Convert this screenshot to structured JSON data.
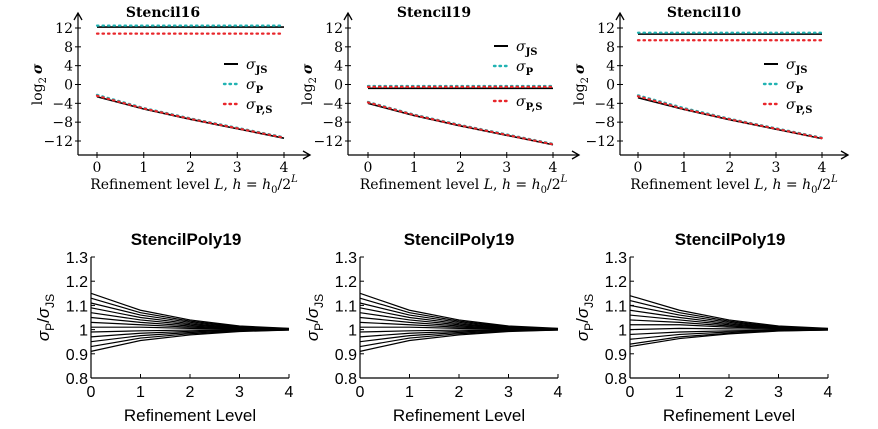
{
  "figure": {
    "top_xlabel_prefix": "Refinement level ",
    "top_xlabel_var": "L",
    "top_xlabel_mid": ", ",
    "top_xlabel_h": "h",
    "top_xlabel_eq": " = ",
    "top_xlabel_h0": "h",
    "top_xlabel_h0_sub": "0",
    "top_xlabel_frac": "/2",
    "top_xlabel_sup": "L",
    "top_ylabel_log": "log",
    "top_ylabel_sub": "2",
    "top_ylabel_sigma": "σ",
    "legend_sigma": "σ",
    "legend_js": "JS",
    "legend_p": "P",
    "legend_ps": "P,S",
    "bottom_xlabel": "Refinement Level",
    "bottom_ylabel_num": "σ",
    "bottom_ylabel_num_sub": "P",
    "bottom_ylabel_slash": "/",
    "bottom_ylabel_den": "σ",
    "bottom_ylabel_den_sub": "JS"
  },
  "colors": {
    "sigma_js": "#000000",
    "sigma_p": "#21b3b3",
    "sigma_p_s": "#e8262b",
    "ratio_lines": "#000000"
  },
  "chart_data": [
    {
      "type": "line",
      "title": "Stencil16",
      "x": [
        0,
        1,
        2,
        3,
        4
      ],
      "xticks": [
        "0",
        "1",
        "2",
        "3",
        "4"
      ],
      "yticks": [
        "12",
        "8",
        "4",
        "0",
        "−4",
        "−8",
        "−12"
      ],
      "ylim": [
        -13,
        13.5
      ],
      "legend_position": "right",
      "series": [
        {
          "name": "σJS",
          "style": "solid",
          "values": [
            12.2,
            12.2,
            12.2,
            12.2,
            12.2
          ]
        },
        {
          "name": "σP",
          "style": "dotted",
          "values": [
            12.5,
            12.5,
            12.5,
            12.5,
            12.5
          ]
        },
        {
          "name": "σP,S",
          "style": "dotted",
          "values": [
            10.8,
            10.8,
            10.8,
            10.8,
            10.8
          ]
        },
        {
          "name": "σJS",
          "style": "solid",
          "values": [
            -2.6,
            -5.2,
            -7.4,
            -9.4,
            -11.4
          ]
        },
        {
          "name": "σP",
          "style": "dotted",
          "values": [
            -2.2,
            -5.0,
            -7.2,
            -9.2,
            -11.2
          ]
        },
        {
          "name": "σP,S",
          "style": "dotted",
          "values": [
            -2.4,
            -5.1,
            -7.3,
            -9.3,
            -11.3
          ]
        }
      ]
    },
    {
      "type": "line",
      "title": "Stencil19",
      "x": [
        0,
        1,
        2,
        3,
        4
      ],
      "xticks": [
        "0",
        "1",
        "2",
        "3",
        "4"
      ],
      "yticks": [
        "12",
        "8",
        "4",
        "0",
        "−4",
        "−8",
        "−12"
      ],
      "ylim": [
        -13,
        13.5
      ],
      "legend_position": "right",
      "series": [
        {
          "name": "σJS",
          "style": "solid",
          "values": [
            -0.8,
            -0.8,
            -0.8,
            -0.8,
            -0.8
          ]
        },
        {
          "name": "σP",
          "style": "dotted",
          "values": [
            -0.3,
            -0.3,
            -0.3,
            -0.3,
            -0.3
          ]
        },
        {
          "name": "σP,S",
          "style": "dotted",
          "values": [
            -0.5,
            -0.5,
            -0.5,
            -0.5,
            -0.5
          ]
        },
        {
          "name": "σJS",
          "style": "solid",
          "values": [
            -4.0,
            -6.6,
            -8.8,
            -10.8,
            -12.8
          ]
        },
        {
          "name": "σP",
          "style": "dotted",
          "values": [
            -3.7,
            -6.4,
            -8.6,
            -10.6,
            -12.6
          ]
        },
        {
          "name": "σP,S",
          "style": "dotted",
          "values": [
            -3.8,
            -6.5,
            -8.7,
            -10.7,
            -12.7
          ]
        }
      ]
    },
    {
      "type": "line",
      "title": "Stencil10",
      "x": [
        0,
        1,
        2,
        3,
        4
      ],
      "xticks": [
        "0",
        "1",
        "2",
        "3",
        "4"
      ],
      "yticks": [
        "12",
        "8",
        "4",
        "0",
        "−4",
        "−8",
        "−12"
      ],
      "ylim": [
        -13,
        13.5
      ],
      "legend_position": "right",
      "series": [
        {
          "name": "σJS",
          "style": "solid",
          "values": [
            10.7,
            10.7,
            10.7,
            10.7,
            10.7
          ]
        },
        {
          "name": "σP",
          "style": "dotted",
          "values": [
            11.0,
            11.0,
            11.0,
            11.0,
            11.0
          ]
        },
        {
          "name": "σP,S",
          "style": "dotted",
          "values": [
            9.4,
            9.4,
            9.4,
            9.4,
            9.4
          ]
        },
        {
          "name": "σJS",
          "style": "solid",
          "values": [
            -2.8,
            -5.3,
            -7.5,
            -9.5,
            -11.5
          ]
        },
        {
          "name": "σP",
          "style": "dotted",
          "values": [
            -2.3,
            -5.0,
            -7.3,
            -9.3,
            -11.3
          ]
        },
        {
          "name": "σP,S",
          "style": "dotted",
          "values": [
            -2.5,
            -5.2,
            -7.4,
            -9.4,
            -11.4
          ]
        }
      ]
    },
    {
      "type": "line",
      "title": "StencilPoly19",
      "x": [
        0,
        1,
        2,
        3,
        4
      ],
      "xticks": [
        "0",
        "1",
        "2",
        "3",
        "4"
      ],
      "yticks": [
        "1.3",
        "1.2",
        "1.1",
        "1",
        "0.9",
        "0.8"
      ],
      "ylim": [
        0.8,
        1.3
      ],
      "series": [
        {
          "values": [
            1.15,
            1.08,
            1.04,
            1.015,
            1.005
          ]
        },
        {
          "values": [
            1.13,
            1.07,
            1.035,
            1.012,
            1.004
          ]
        },
        {
          "values": [
            1.11,
            1.06,
            1.03,
            1.01,
            1.003
          ]
        },
        {
          "values": [
            1.09,
            1.05,
            1.025,
            1.008,
            1.003
          ]
        },
        {
          "values": [
            1.07,
            1.04,
            1.02,
            1.007,
            1.002
          ]
        },
        {
          "values": [
            1.05,
            1.03,
            1.015,
            1.005,
            1.002
          ]
        },
        {
          "values": [
            1.03,
            1.02,
            1.01,
            1.004,
            1.001
          ]
        },
        {
          "values": [
            1.01,
            1.01,
            1.005,
            1.002,
            1.001
          ]
        },
        {
          "values": [
            0.99,
            0.995,
            0.998,
            0.999,
            1.0
          ]
        },
        {
          "values": [
            0.97,
            0.985,
            0.993,
            0.998,
            0.999
          ]
        },
        {
          "values": [
            0.95,
            0.975,
            0.988,
            0.996,
            0.999
          ]
        },
        {
          "values": [
            0.93,
            0.965,
            0.983,
            0.994,
            0.998
          ]
        },
        {
          "values": [
            0.91,
            0.955,
            0.978,
            0.992,
            0.998
          ]
        }
      ]
    },
    {
      "type": "line",
      "title": "StencilPoly19",
      "x": [
        0,
        1,
        2,
        3,
        4
      ],
      "xticks": [
        "0",
        "1",
        "2",
        "3",
        "4"
      ],
      "yticks": [
        "1.3",
        "1.2",
        "1.1",
        "1",
        "0.9",
        "0.8"
      ],
      "ylim": [
        0.8,
        1.3
      ],
      "series": [
        {
          "values": [
            1.15,
            1.08,
            1.04,
            1.015,
            1.005
          ]
        },
        {
          "values": [
            1.13,
            1.07,
            1.035,
            1.012,
            1.004
          ]
        },
        {
          "values": [
            1.11,
            1.06,
            1.03,
            1.01,
            1.003
          ]
        },
        {
          "values": [
            1.09,
            1.05,
            1.025,
            1.008,
            1.003
          ]
        },
        {
          "values": [
            1.07,
            1.04,
            1.02,
            1.007,
            1.002
          ]
        },
        {
          "values": [
            1.05,
            1.03,
            1.015,
            1.005,
            1.002
          ]
        },
        {
          "values": [
            1.03,
            1.02,
            1.01,
            1.004,
            1.001
          ]
        },
        {
          "values": [
            1.01,
            1.01,
            1.005,
            1.002,
            1.001
          ]
        },
        {
          "values": [
            0.99,
            0.995,
            0.998,
            0.999,
            1.0
          ]
        },
        {
          "values": [
            0.97,
            0.985,
            0.993,
            0.998,
            0.999
          ]
        },
        {
          "values": [
            0.95,
            0.975,
            0.988,
            0.996,
            0.999
          ]
        },
        {
          "values": [
            0.93,
            0.965,
            0.983,
            0.994,
            0.998
          ]
        },
        {
          "values": [
            0.91,
            0.955,
            0.978,
            0.992,
            0.998
          ]
        }
      ]
    },
    {
      "type": "line",
      "title": "StencilPoly19",
      "x": [
        0,
        1,
        2,
        3,
        4
      ],
      "xticks": [
        "0",
        "1",
        "2",
        "3",
        "4"
      ],
      "yticks": [
        "1.3",
        "1.2",
        "1.1",
        "1",
        "0.9",
        "0.8"
      ],
      "ylim": [
        0.8,
        1.3
      ],
      "series": [
        {
          "values": [
            1.14,
            1.08,
            1.04,
            1.015,
            1.005
          ]
        },
        {
          "values": [
            1.12,
            1.07,
            1.035,
            1.012,
            1.004
          ]
        },
        {
          "values": [
            1.1,
            1.06,
            1.03,
            1.01,
            1.003
          ]
        },
        {
          "values": [
            1.08,
            1.05,
            1.025,
            1.008,
            1.003
          ]
        },
        {
          "values": [
            1.06,
            1.04,
            1.02,
            1.007,
            1.002
          ]
        },
        {
          "values": [
            1.04,
            1.03,
            1.015,
            1.005,
            1.002
          ]
        },
        {
          "values": [
            1.02,
            1.02,
            1.01,
            1.004,
            1.001
          ]
        },
        {
          "values": [
            1.0,
            1.005,
            1.003,
            1.001,
            1.0
          ]
        },
        {
          "values": [
            0.98,
            0.99,
            0.995,
            0.998,
            0.999
          ]
        },
        {
          "values": [
            0.96,
            0.98,
            0.99,
            0.997,
            0.999
          ]
        },
        {
          "values": [
            0.94,
            0.97,
            0.985,
            0.995,
            0.998
          ]
        },
        {
          "values": [
            0.93,
            0.963,
            0.982,
            0.994,
            0.998
          ]
        }
      ]
    }
  ]
}
